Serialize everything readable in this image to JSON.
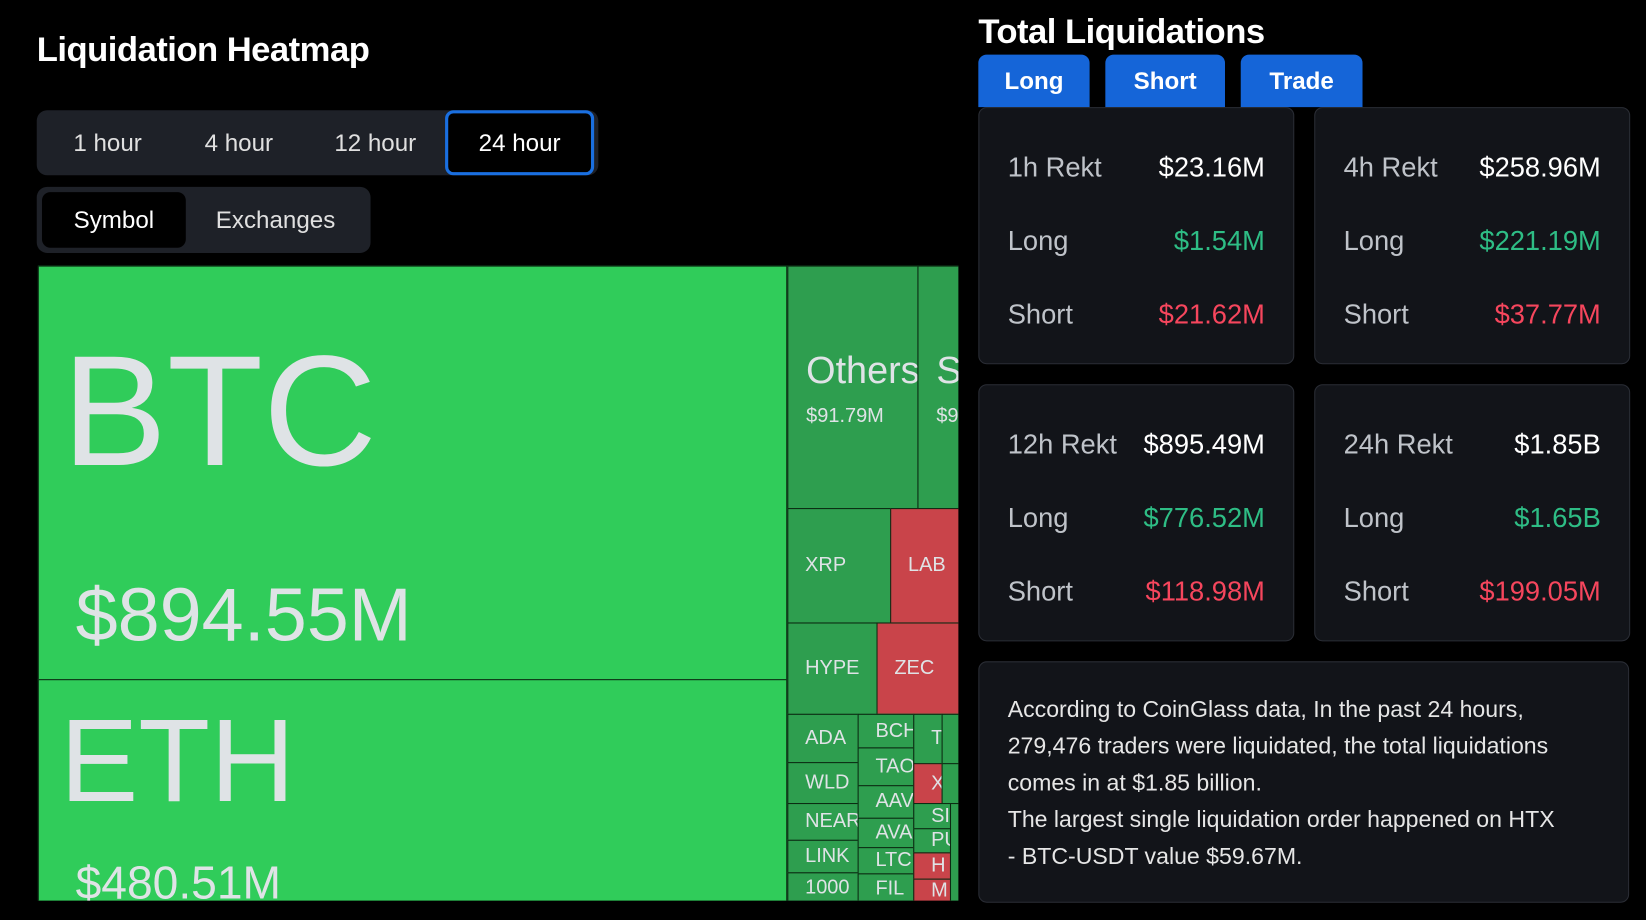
{
  "header": {
    "title": "Liquidation Heatmap"
  },
  "time_tabs": [
    "1 hour",
    "4 hour",
    "12 hour",
    "24 hour"
  ],
  "view_tabs": [
    "Symbol",
    "Exchanges"
  ],
  "treemap": {
    "tiles": [
      {
        "label": "BTC",
        "value": "$894.55M"
      },
      {
        "label": "ETH",
        "value": "$480.51M"
      },
      {
        "label": "Others",
        "value": "$91.79M"
      },
      {
        "label": "S",
        "value": "$9"
      },
      {
        "label": "XRP"
      },
      {
        "label": "LAB"
      },
      {
        "label": "HYPE"
      },
      {
        "label": "ZEC"
      },
      {
        "label": "ADA"
      },
      {
        "label": "WLD"
      },
      {
        "label": "NEAR"
      },
      {
        "label": "LINK"
      },
      {
        "label": "1000"
      },
      {
        "label": "BCH"
      },
      {
        "label": "TAO"
      },
      {
        "label": "AAV"
      },
      {
        "label": "AVA"
      },
      {
        "label": "LTC"
      },
      {
        "label": "FIL"
      },
      {
        "label": "T"
      },
      {
        "label": "X"
      },
      {
        "label": "SI"
      },
      {
        "label": "PU"
      },
      {
        "label": "H"
      },
      {
        "label": "M"
      }
    ]
  },
  "total": {
    "title": "Total Liquidations",
    "buttons": [
      "Long",
      "Short",
      "Trade"
    ],
    "cards": [
      {
        "title": "1h Rekt",
        "total": "$23.16M",
        "rows": [
          {
            "label": "Long",
            "value": "$1.54M"
          },
          {
            "label": "Short",
            "value": "$21.62M"
          }
        ]
      },
      {
        "title": "4h Rekt",
        "total": "$258.96M",
        "rows": [
          {
            "label": "Long",
            "value": "$221.19M"
          },
          {
            "label": "Short",
            "value": "$37.77M"
          }
        ]
      },
      {
        "title": "12h Rekt",
        "total": "$895.49M",
        "rows": [
          {
            "label": "Long",
            "value": "$776.52M"
          },
          {
            "label": "Short",
            "value": "$118.98M"
          }
        ]
      },
      {
        "title": "24h Rekt",
        "total": "$1.85B",
        "rows": [
          {
            "label": "Long",
            "value": "$1.65B"
          },
          {
            "label": "Short",
            "value": "$199.05M"
          }
        ]
      }
    ]
  },
  "summary": {
    "lines": [
      "According to CoinGlass data, In the past 24 hours,",
      "279,476 traders were liquidated, the total liquidations",
      "comes in at $1.85 billion.",
      "The largest single liquidation order happened on HTX",
      "- BTC-USDT value $59.67M."
    ]
  }
}
